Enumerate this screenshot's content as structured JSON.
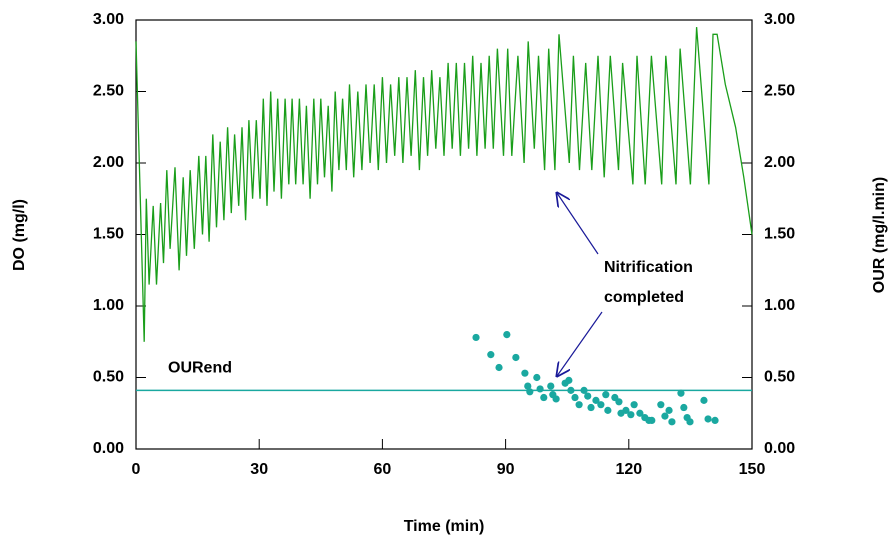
{
  "chart_data": {
    "type": "line",
    "xlabel": "Time (min)",
    "ylabel": "DO (mg/l)",
    "y2label": "OUR (mg/l.min)",
    "xlim": [
      0,
      150
    ],
    "xticks": [
      0,
      30,
      60,
      90,
      120,
      150
    ],
    "ylim": [
      0,
      3
    ],
    "yticks": [
      {
        "value": 0,
        "label": "0.00"
      },
      {
        "value": 0.5,
        "label": "0.50"
      },
      {
        "value": 1,
        "label": "1.00"
      },
      {
        "value": 1.5,
        "label": "1.50"
      },
      {
        "value": 2,
        "label": "2.00"
      },
      {
        "value": 2.5,
        "label": "2.50"
      },
      {
        "value": 3,
        "label": "3.00"
      }
    ],
    "y2lim": [
      0,
      3
    ],
    "y2ticks": [
      {
        "value": 0,
        "label": "0.00"
      },
      {
        "value": 0.5,
        "label": "0.50"
      },
      {
        "value": 1,
        "label": "1.00"
      },
      {
        "value": 1.5,
        "label": "1.50"
      },
      {
        "value": 2,
        "label": "2.00"
      },
      {
        "value": 2.5,
        "label": "2.50"
      },
      {
        "value": 3,
        "label": "3.00"
      }
    ],
    "series": [
      {
        "type": "line",
        "color": "#1a9e1a",
        "x": [
          0,
          2,
          2.5,
          3.2,
          4.2,
          5,
          6,
          6.7,
          7.5,
          8.3,
          9.5,
          10.5,
          11.5,
          12.3,
          13.2,
          14.2,
          15.3,
          16.2,
          17,
          17.8,
          18.7,
          19.6,
          20.5,
          21.4,
          22.3,
          23.2,
          24,
          25,
          25.8,
          26.7,
          27.5,
          28.4,
          29.3,
          30.2,
          31,
          31.9,
          32.8,
          33.6,
          34.5,
          35.4,
          36.3,
          37.2,
          38,
          38.9,
          39.8,
          40.7,
          41.5,
          42.4,
          43.3,
          44.2,
          45,
          45.9,
          46.8,
          47.7,
          48.5,
          49.4,
          50.3,
          51.2,
          52,
          53,
          54,
          55,
          56,
          57,
          58,
          59,
          60,
          61,
          62,
          63,
          64,
          65,
          66,
          67,
          68,
          69,
          70,
          71,
          72,
          73,
          74,
          75,
          76,
          77,
          78,
          79,
          80,
          81,
          82,
          83,
          84,
          85,
          86,
          87,
          88,
          89.5,
          90.5,
          91.5,
          93,
          94.5,
          95.5,
          97,
          98,
          99.5,
          100.5,
          102,
          103,
          105.5,
          106.5,
          108,
          109.5,
          111,
          112.5,
          114,
          115.5,
          117.5,
          118.5,
          121,
          122,
          124,
          125.5,
          128,
          129,
          131.5,
          132.5,
          135,
          136.5,
          139.5,
          140.5,
          141.5,
          143.5,
          146,
          148,
          150
        ],
        "values": [
          2.85,
          0.75,
          1.75,
          1.15,
          1.7,
          1.15,
          1.72,
          1.3,
          1.95,
          1.4,
          1.97,
          1.25,
          1.9,
          1.35,
          1.95,
          1.4,
          2.05,
          1.5,
          2.05,
          1.45,
          2.2,
          1.55,
          2.15,
          1.6,
          2.25,
          1.65,
          2.2,
          1.7,
          2.25,
          1.6,
          2.3,
          1.75,
          2.3,
          1.75,
          2.45,
          1.7,
          2.5,
          1.8,
          2.45,
          1.75,
          2.45,
          1.85,
          2.45,
          1.85,
          2.45,
          1.85,
          2.4,
          1.75,
          2.45,
          1.85,
          2.45,
          1.9,
          2.4,
          1.8,
          2.5,
          1.95,
          2.45,
          1.95,
          2.55,
          1.9,
          2.5,
          1.95,
          2.55,
          2.0,
          2.55,
          1.95,
          2.6,
          2.0,
          2.55,
          2.05,
          2.6,
          2.0,
          2.6,
          2.05,
          2.65,
          1.95,
          2.6,
          2.05,
          2.65,
          2.1,
          2.6,
          2.05,
          2.7,
          2.1,
          2.7,
          2.05,
          2.7,
          2.1,
          2.75,
          2.05,
          2.7,
          2.1,
          2.75,
          2.1,
          2.8,
          2.05,
          2.8,
          2.05,
          2.75,
          2.0,
          2.85,
          2.1,
          2.75,
          1.95,
          2.8,
          1.95,
          2.9,
          2.0,
          2.75,
          1.95,
          2.7,
          1.95,
          2.75,
          1.9,
          2.75,
          1.95,
          2.7,
          1.85,
          2.75,
          1.85,
          2.75,
          1.85,
          2.75,
          1.85,
          2.8,
          1.85,
          2.95,
          1.85,
          2.9,
          2.9,
          2.55,
          2.25,
          1.9,
          1.5
        ]
      },
      {
        "type": "scatter",
        "color": "#1aa8a0",
        "axis": "y2",
        "x": [
          82.8,
          86.4,
          88.4,
          90.3,
          92.5,
          94.7,
          95.4,
          95.9,
          97.6,
          98.4,
          99.3,
          101,
          101.5,
          102.3,
          104.5,
          105.4,
          105.9,
          106.9,
          107.9,
          109.1,
          110,
          110.8,
          112,
          113.2,
          114.4,
          114.9,
          116.6,
          117.6,
          118.1,
          119.3,
          120.5,
          121.3,
          122.7,
          123.9,
          124.9,
          125.6,
          127.8,
          128.8,
          129.8,
          130.5,
          132.7,
          133.4,
          134.2,
          134.9,
          138.3,
          139.3,
          141
        ],
        "values": [
          0.78,
          0.66,
          0.57,
          0.8,
          0.64,
          0.53,
          0.44,
          0.4,
          0.5,
          0.42,
          0.36,
          0.44,
          0.38,
          0.35,
          0.46,
          0.48,
          0.41,
          0.36,
          0.31,
          0.41,
          0.37,
          0.29,
          0.34,
          0.31,
          0.38,
          0.27,
          0.36,
          0.33,
          0.25,
          0.27,
          0.24,
          0.31,
          0.25,
          0.22,
          0.2,
          0.2,
          0.31,
          0.23,
          0.27,
          0.19,
          0.39,
          0.29,
          0.22,
          0.19,
          0.34,
          0.21,
          0.2
        ]
      }
    ],
    "hline": {
      "label": "OURend",
      "value": 0.41,
      "color": "#1aa8a0"
    },
    "annotation": {
      "lines": [
        "Nitrification",
        "completed"
      ],
      "color": "#1a1a99"
    }
  }
}
